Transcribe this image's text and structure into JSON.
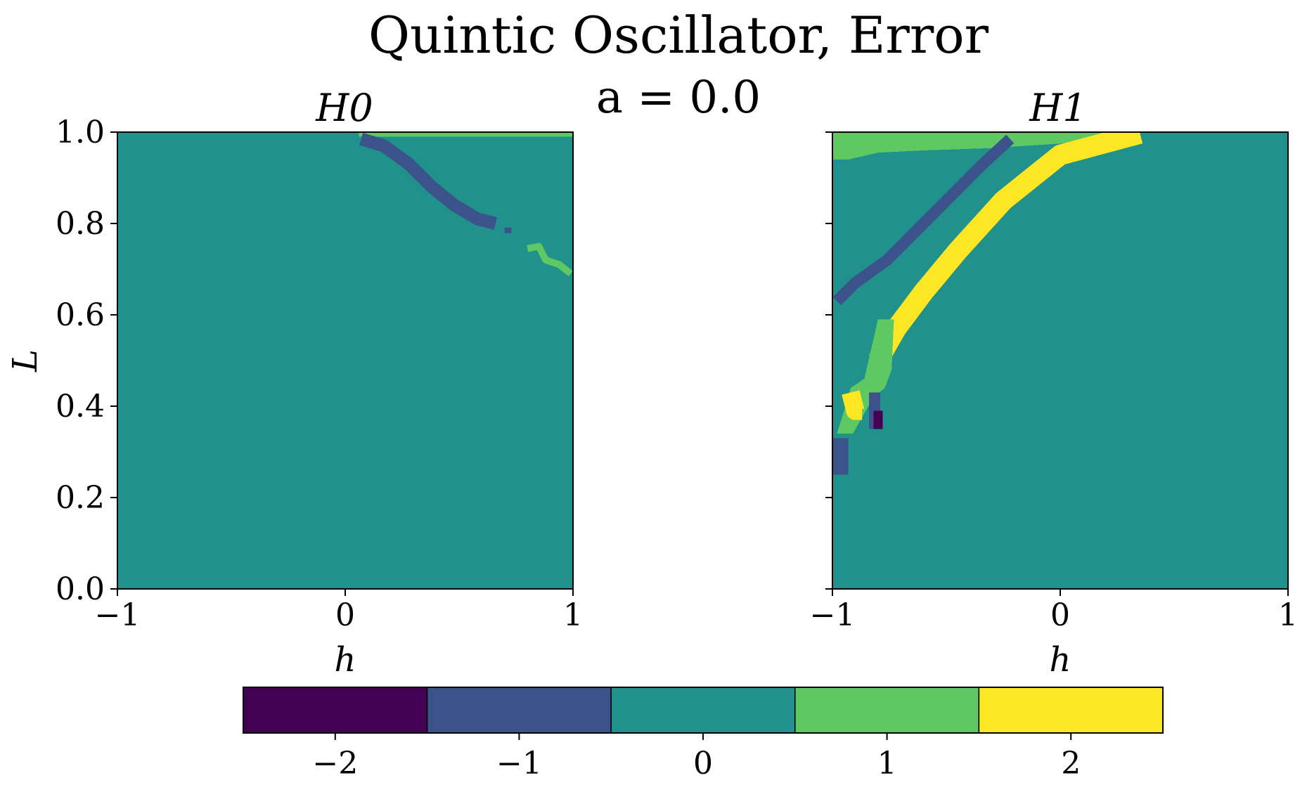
{
  "chart_data": [
    {
      "type": "heatmap",
      "title": "Quintic Oscillator, Error",
      "subtitle": "a = 0.0",
      "panel_title": "H0",
      "xlabel": "h",
      "ylabel": "L",
      "xlim": [
        -1,
        1
      ],
      "ylim": [
        0.0,
        1.0
      ],
      "xticks": [
        "−1",
        "0",
        "1"
      ],
      "yticks": [
        "0.0",
        "0.2",
        "0.4",
        "0.6",
        "0.8",
        "1.0"
      ],
      "background_value": 0,
      "regions": [
        {
          "value": 1,
          "polygon": [
            [
              0.06,
              1.0
            ],
            [
              1.0,
              1.0
            ],
            [
              1.0,
              0.99
            ],
            [
              0.06,
              0.99
            ]
          ]
        },
        {
          "value": -1,
          "polyline": [
            [
              0.07,
              0.985
            ],
            [
              0.17,
              0.97
            ],
            [
              0.28,
              0.93
            ],
            [
              0.38,
              0.88
            ],
            [
              0.48,
              0.84
            ],
            [
              0.58,
              0.81
            ],
            [
              0.66,
              0.8
            ]
          ],
          "width": 0.028
        },
        {
          "value": -1,
          "polyline": [
            [
              0.7,
              0.785
            ],
            [
              0.73,
              0.785
            ]
          ],
          "width": 0.012
        },
        {
          "value": 1,
          "polyline": [
            [
              0.8,
              0.745
            ],
            [
              0.85,
              0.75
            ],
            [
              0.88,
              0.72
            ],
            [
              0.94,
              0.71
            ],
            [
              0.99,
              0.69
            ]
          ],
          "width": 0.015
        }
      ]
    },
    {
      "type": "heatmap",
      "panel_title": "H1",
      "xlabel": "h",
      "xlim": [
        -1,
        1
      ],
      "ylim": [
        0.0,
        1.0
      ],
      "xticks": [
        "−1",
        "0",
        "1"
      ],
      "background_value": 0,
      "regions": [
        {
          "value": 1,
          "polygon": [
            [
              -1.0,
              1.0
            ],
            [
              0.37,
              1.0
            ],
            [
              0.3,
              0.99
            ],
            [
              0.0,
              0.975
            ],
            [
              -0.3,
              0.965
            ],
            [
              -0.6,
              0.96
            ],
            [
              -0.8,
              0.955
            ],
            [
              -0.93,
              0.94
            ],
            [
              -1.0,
              0.94
            ]
          ]
        },
        {
          "value": 2,
          "polyline": [
            [
              0.35,
              0.997
            ],
            [
              0.0,
              0.95
            ],
            [
              -0.25,
              0.85
            ],
            [
              -0.45,
              0.74
            ],
            [
              -0.6,
              0.65
            ],
            [
              -0.72,
              0.57
            ],
            [
              -0.8,
              0.5
            ]
          ],
          "width": 0.045
        },
        {
          "value": 1,
          "polygon": [
            [
              -0.73,
              0.59
            ],
            [
              -0.8,
              0.59
            ],
            [
              -0.86,
              0.46
            ],
            [
              -0.92,
              0.44
            ],
            [
              -0.93,
              0.42
            ],
            [
              -0.98,
              0.34
            ],
            [
              -0.91,
              0.34
            ],
            [
              -0.82,
              0.42
            ],
            [
              -0.77,
              0.44
            ],
            [
              -0.74,
              0.48
            ]
          ]
        },
        {
          "value": 2,
          "polyline": [
            [
              -0.92,
              0.43
            ],
            [
              -0.9,
              0.39
            ],
            [
              -0.87,
              0.39
            ]
          ],
          "width": 0.04
        },
        {
          "value": -1,
          "polyline": [
            [
              -0.22,
              0.985
            ],
            [
              -0.34,
              0.93
            ],
            [
              -0.5,
              0.85
            ],
            [
              -0.62,
              0.79
            ],
            [
              -0.76,
              0.72
            ],
            [
              -0.9,
              0.67
            ],
            [
              -0.98,
              0.63
            ]
          ],
          "width": 0.025
        },
        {
          "value": -1,
          "polygon": [
            [
              -1.0,
              0.33
            ],
            [
              -0.93,
              0.33
            ],
            [
              -0.93,
              0.25
            ],
            [
              -1.0,
              0.25
            ]
          ]
        },
        {
          "value": -1,
          "polygon": [
            [
              -0.84,
              0.43
            ],
            [
              -0.79,
              0.43
            ],
            [
              -0.79,
              0.35
            ],
            [
              -0.84,
              0.35
            ]
          ]
        },
        {
          "value": -2,
          "polygon": [
            [
              -0.82,
              0.39
            ],
            [
              -0.78,
              0.39
            ],
            [
              -0.78,
              0.35
            ],
            [
              -0.82,
              0.35
            ]
          ]
        }
      ]
    }
  ],
  "colorbar": {
    "values": [
      -2,
      -1,
      0,
      1,
      2
    ],
    "tick_labels": [
      "−2",
      "−1",
      "0",
      "1",
      "2"
    ],
    "colors": [
      "#440154",
      "#3b528b",
      "#21918c",
      "#5ec962",
      "#fde725"
    ]
  }
}
